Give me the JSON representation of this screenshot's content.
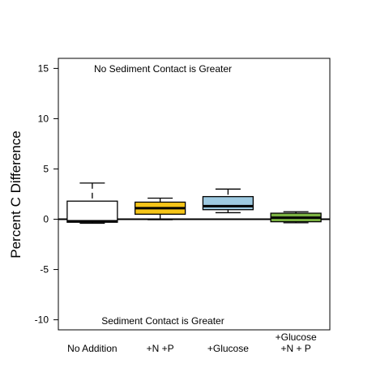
{
  "chart_data": {
    "type": "boxplot",
    "title": "",
    "xlabel": "",
    "ylabel": "Percent C Difference",
    "ylim": [
      -11,
      16
    ],
    "yticks": [
      "15",
      "10",
      "5",
      "0",
      "-5",
      "-10"
    ],
    "ytick_values": [
      15,
      10,
      5,
      0,
      -5,
      -10
    ],
    "reference_line": 0,
    "annotations": {
      "top": "No Sediment Contact is Greater",
      "bottom": "Sediment Contact is Greater"
    },
    "categories": [
      [
        "No Addition"
      ],
      [
        "+N +P"
      ],
      [
        "+Glucose"
      ],
      [
        "+Glucose",
        "+N + P"
      ]
    ],
    "boxes": [
      {
        "min": -0.4,
        "q1": -0.3,
        "median": -0.2,
        "q3": 1.8,
        "max": 3.6,
        "color": "#ffffff"
      },
      {
        "min": -0.05,
        "q1": 0.5,
        "median": 1.1,
        "q3": 1.7,
        "max": 2.1,
        "color": "#f5c518"
      },
      {
        "min": 0.65,
        "q1": 0.95,
        "median": 1.3,
        "q3": 2.25,
        "max": 3.0,
        "color": "#9ecae1"
      },
      {
        "min": -0.35,
        "q1": -0.25,
        "median": 0.15,
        "q3": 0.6,
        "max": 0.75,
        "color": "#7cb342"
      }
    ]
  }
}
